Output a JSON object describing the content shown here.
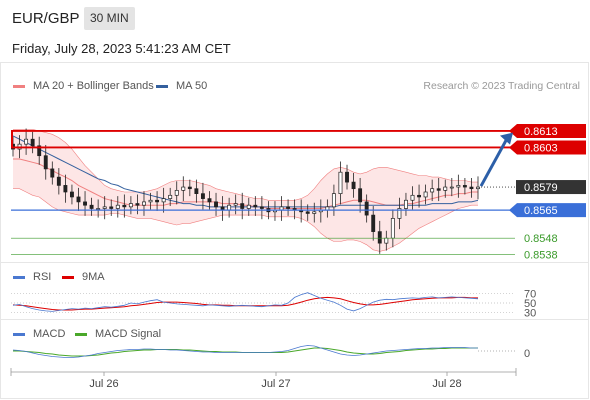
{
  "header": {
    "pair": "EUR/GBP",
    "timeframe": "30 MIN",
    "datetime": "Friday, July 28, 2023 5:41:23 AM CET",
    "credit": "Research © 2023 Trading Central"
  },
  "colors": {
    "ma20": "#f08080",
    "bollinger_fill": "#fde0e0",
    "ma50": "#34609e",
    "resistance": "#dd0000",
    "support": "#3a6fd8",
    "target": "#3a9a2a",
    "arrow": "#2c5fa8",
    "last_price": "#333333",
    "candle": "#222222",
    "rsi": "#4a78d0",
    "rsi_9ma": "#dd0000",
    "macd": "#4a78d0",
    "macd_signal": "#4aa82a"
  },
  "chart_data": [
    {
      "type": "candlestick",
      "name": "price",
      "legend": [
        {
          "name": "MA 20 + Bollinger Bands",
          "color": "#f08080"
        },
        {
          "name": "MA 50",
          "color": "#34609e"
        }
      ],
      "x_ticks": [
        "Jul 26",
        "Jul 27",
        "Jul 28"
      ],
      "levels": [
        {
          "label": "0.8613",
          "value": 0.8613,
          "kind": "resistance"
        },
        {
          "label": "0.8603",
          "value": 0.8603,
          "kind": "resistance"
        },
        {
          "label": "0.8579",
          "value": 0.8579,
          "kind": "last"
        },
        {
          "label": "0.8565",
          "value": 0.8565,
          "kind": "support"
        },
        {
          "label": "0.8548",
          "value": 0.8548,
          "kind": "target"
        },
        {
          "label": "0.8538",
          "value": 0.8538,
          "kind": "target"
        }
      ],
      "close": [
        0.8602,
        0.8605,
        0.8608,
        0.8604,
        0.8598,
        0.859,
        0.8585,
        0.858,
        0.8576,
        0.8573,
        0.857,
        0.8568,
        0.8566,
        0.8566,
        0.8567,
        0.8566,
        0.8568,
        0.8567,
        0.8569,
        0.8568,
        0.857,
        0.8571,
        0.857,
        0.8572,
        0.8574,
        0.8577,
        0.8579,
        0.8578,
        0.8575,
        0.8572,
        0.857,
        0.8567,
        0.8565,
        0.8568,
        0.8569,
        0.8566,
        0.8568,
        0.8567,
        0.8566,
        0.8564,
        0.8565,
        0.8567,
        0.8566,
        0.8565,
        0.8564,
        0.8563,
        0.8564,
        0.8565,
        0.8567,
        0.8575,
        0.8588,
        0.8582,
        0.8578,
        0.857,
        0.8562,
        0.8552,
        0.8545,
        0.8548,
        0.856,
        0.8566,
        0.8571,
        0.8574,
        0.8573,
        0.8576,
        0.8578,
        0.8577,
        0.8579,
        0.8579,
        0.858,
        0.8579,
        0.8578,
        0.8579
      ],
      "ma20": [
        0.8596,
        0.8596,
        0.8595,
        0.8594,
        0.8593,
        0.8591,
        0.8589,
        0.8587,
        0.8585,
        0.8583,
        0.858,
        0.8578,
        0.8576,
        0.8574,
        0.8572,
        0.8571,
        0.857,
        0.8569,
        0.8568,
        0.8568,
        0.8568,
        0.8568,
        0.8568,
        0.8568,
        0.8569,
        0.8569,
        0.857,
        0.857,
        0.857,
        0.857,
        0.857,
        0.857,
        0.8569,
        0.8569,
        0.8569,
        0.8568,
        0.8568,
        0.8567,
        0.8567,
        0.8566,
        0.8566,
        0.8566,
        0.8566,
        0.8566,
        0.8566,
        0.8566,
        0.8566,
        0.8566,
        0.8567,
        0.8568,
        0.8569,
        0.857,
        0.8571,
        0.8571,
        0.8571,
        0.857,
        0.8569,
        0.8568,
        0.8568,
        0.8568,
        0.8569,
        0.8569,
        0.857,
        0.8571,
        0.8572,
        0.8573,
        0.8574,
        0.8574,
        0.8575,
        0.8575,
        0.8576,
        0.8576
      ],
      "bb_upper": [
        0.8614,
        0.8614,
        0.8614,
        0.8614,
        0.8613,
        0.8612,
        0.8611,
        0.8609,
        0.8606,
        0.8602,
        0.8597,
        0.8592,
        0.8588,
        0.8584,
        0.858,
        0.8578,
        0.8577,
        0.8576,
        0.8576,
        0.8576,
        0.8576,
        0.8577,
        0.8578,
        0.858,
        0.8582,
        0.8583,
        0.8583,
        0.8583,
        0.8582,
        0.8581,
        0.858,
        0.8578,
        0.8577,
        0.8576,
        0.8575,
        0.8574,
        0.8573,
        0.8572,
        0.8572,
        0.8571,
        0.8571,
        0.8571,
        0.8571,
        0.8571,
        0.8572,
        0.8574,
        0.8578,
        0.8583,
        0.8587,
        0.859,
        0.8591,
        0.859,
        0.8588,
        0.8587,
        0.8588,
        0.859,
        0.8591,
        0.8591,
        0.859,
        0.8589,
        0.8588,
        0.8587,
        0.8586,
        0.8586,
        0.8585,
        0.8585,
        0.8584,
        0.8583,
        0.8583,
        0.8583,
        0.8582,
        0.8582
      ],
      "bb_lower": [
        0.8578,
        0.8578,
        0.8576,
        0.8574,
        0.8573,
        0.857,
        0.8567,
        0.8565,
        0.8564,
        0.8563,
        0.8562,
        0.8562,
        0.8562,
        0.8562,
        0.8562,
        0.8563,
        0.8563,
        0.8562,
        0.8561,
        0.856,
        0.856,
        0.856,
        0.8559,
        0.8558,
        0.8557,
        0.8556,
        0.8557,
        0.8557,
        0.8558,
        0.8559,
        0.856,
        0.8561,
        0.8562,
        0.8562,
        0.8562,
        0.8562,
        0.8562,
        0.8562,
        0.8562,
        0.8561,
        0.8561,
        0.8561,
        0.8561,
        0.8561,
        0.856,
        0.8558,
        0.8555,
        0.8551,
        0.8548,
        0.8546,
        0.8546,
        0.8547,
        0.8547,
        0.8546,
        0.8544,
        0.8541,
        0.854,
        0.8541,
        0.8543,
        0.8545,
        0.8548,
        0.8551,
        0.8554,
        0.8556,
        0.8558,
        0.856,
        0.8562,
        0.8564,
        0.8566,
        0.8567,
        0.8568,
        0.8568
      ],
      "ma50": [
        0.861,
        0.8608,
        0.8606,
        0.8604,
        0.8602,
        0.86,
        0.8598,
        0.8596,
        0.8594,
        0.8592,
        0.859,
        0.8588,
        0.8586,
        0.8584,
        0.8583,
        0.8581,
        0.858,
        0.8578,
        0.8577,
        0.8576,
        0.8575,
        0.8574,
        0.8573,
        0.8572,
        0.8571,
        0.857,
        0.8569,
        0.8569,
        0.8568,
        0.8568,
        0.8567,
        0.8567,
        0.8567,
        0.8567,
        0.8567,
        0.8567,
        0.8567,
        0.8567,
        0.8567,
        0.8567,
        0.8567,
        0.8567,
        0.8567,
        0.8567,
        0.8567,
        0.8567,
        0.8567,
        0.8567,
        0.8567,
        0.8567,
        0.8568,
        0.8568,
        0.8568,
        0.8568,
        0.8568,
        0.8568,
        0.8568,
        0.8568,
        0.8568,
        0.8568,
        0.8568,
        0.8568,
        0.8568,
        0.8568,
        0.8569,
        0.8569,
        0.8569,
        0.8569,
        0.857,
        0.857,
        0.857,
        0.8571
      ]
    },
    {
      "type": "line",
      "name": "RSI",
      "legend": [
        {
          "name": "RSI",
          "color": "#4a78d0"
        },
        {
          "name": "9MA",
          "color": "#dd0000"
        }
      ],
      "y_ticks": [
        "70",
        "50",
        "30"
      ],
      "ylim": [
        20,
        80
      ],
      "rsi": [
        45,
        47,
        42,
        38,
        35,
        33,
        32,
        34,
        36,
        38,
        37,
        39,
        38,
        40,
        42,
        41,
        43,
        45,
        50,
        48,
        52,
        55,
        57,
        52,
        50,
        48,
        47,
        46,
        45,
        44,
        46,
        45,
        44,
        43,
        44,
        45,
        44,
        43,
        42,
        44,
        46,
        45,
        50,
        62,
        68,
        72,
        66,
        60,
        56,
        52,
        45,
        37,
        33,
        38,
        45,
        52,
        56,
        58,
        57,
        59,
        60,
        61,
        60,
        62,
        63,
        61,
        62,
        63,
        62,
        61,
        60,
        59
      ],
      "ma9": [
        46,
        45,
        44,
        42,
        40,
        38,
        36,
        35,
        35,
        35,
        36,
        37,
        37,
        38,
        39,
        40,
        41,
        42,
        44,
        45,
        47,
        49,
        51,
        52,
        52,
        52,
        51,
        50,
        49,
        47,
        46,
        46,
        45,
        45,
        44,
        44,
        44,
        44,
        44,
        44,
        44,
        44,
        45,
        48,
        52,
        56,
        59,
        61,
        62,
        61,
        59,
        55,
        51,
        48,
        46,
        46,
        47,
        49,
        51,
        53,
        55,
        57,
        58,
        59,
        60,
        61,
        61,
        61,
        62,
        62,
        61,
        61
      ]
    },
    {
      "type": "line",
      "name": "MACD",
      "legend": [
        {
          "name": "MACD",
          "color": "#4a78d0"
        },
        {
          "name": "MACD Signal",
          "color": "#4aa82a"
        }
      ],
      "y_ticks": [
        "0"
      ],
      "macd": [
        0.2,
        0.1,
        -0.1,
        -0.4,
        -0.7,
        -0.9,
        -1.1,
        -1.2,
        -1.3,
        -1.3,
        -1.2,
        -1.0,
        -0.8,
        -0.5,
        -0.3,
        -0.1,
        0.1,
        0.2,
        0.3,
        0.3,
        0.4,
        0.4,
        0.3,
        0.3,
        0.2,
        0.2,
        0.1,
        0.0,
        -0.1,
        -0.2,
        -0.2,
        -0.3,
        -0.3,
        -0.3,
        -0.3,
        -0.3,
        -0.3,
        -0.3,
        -0.3,
        -0.3,
        -0.2,
        -0.1,
        0.1,
        0.5,
        0.9,
        1.1,
        1.0,
        0.6,
        0.2,
        -0.2,
        -0.6,
        -0.8,
        -0.9,
        -0.8,
        -0.6,
        -0.4,
        -0.2,
        0.0,
        0.1,
        0.2,
        0.3,
        0.4,
        0.5,
        0.5,
        0.6,
        0.6,
        0.7,
        0.7,
        0.7,
        0.7,
        0.6,
        0.6
      ],
      "signal": [
        0.0,
        0.0,
        -0.1,
        -0.2,
        -0.3,
        -0.5,
        -0.6,
        -0.8,
        -0.9,
        -1.0,
        -1.0,
        -1.0,
        -0.9,
        -0.8,
        -0.6,
        -0.4,
        -0.3,
        -0.1,
        0.0,
        0.1,
        0.2,
        0.2,
        0.3,
        0.3,
        0.3,
        0.3,
        0.2,
        0.2,
        0.1,
        0.0,
        -0.1,
        -0.1,
        -0.2,
        -0.2,
        -0.2,
        -0.3,
        -0.3,
        -0.3,
        -0.3,
        -0.3,
        -0.3,
        -0.3,
        -0.2,
        0.0,
        0.2,
        0.4,
        0.6,
        0.6,
        0.5,
        0.3,
        0.1,
        -0.2,
        -0.4,
        -0.5,
        -0.6,
        -0.6,
        -0.5,
        -0.3,
        -0.2,
        -0.1,
        0.1,
        0.2,
        0.3,
        0.4,
        0.4,
        0.5,
        0.5,
        0.6,
        0.6,
        0.6,
        0.6,
        0.6
      ]
    }
  ]
}
